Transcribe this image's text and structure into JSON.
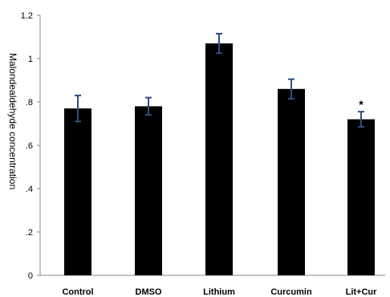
{
  "chart_data": {
    "type": "bar",
    "title": "",
    "xlabel": "",
    "ylabel": "Malondealdehyde  concentration",
    "categories": [
      "Control",
      "DMSO",
      "Lithium",
      "Curcumin",
      "Lit+Cur"
    ],
    "values": [
      0.77,
      0.78,
      1.07,
      0.86,
      0.72
    ],
    "errors": [
      0.06,
      0.04,
      0.045,
      0.045,
      0.035
    ],
    "annotations": [
      "",
      "",
      "",
      "",
      "*"
    ],
    "y_tick_labels": [
      "0",
      ".2",
      ".4",
      ".6",
      ".8",
      "1",
      "1.2"
    ],
    "y_tick_values": [
      0,
      0.2,
      0.4,
      0.6,
      0.8,
      1.0,
      1.2
    ],
    "ylim": [
      0,
      1.2
    ],
    "grid": false,
    "legend": "none",
    "colors": {
      "bar": "#000000",
      "error_bar": "#2f4f7f",
      "axis": "#888888"
    }
  }
}
